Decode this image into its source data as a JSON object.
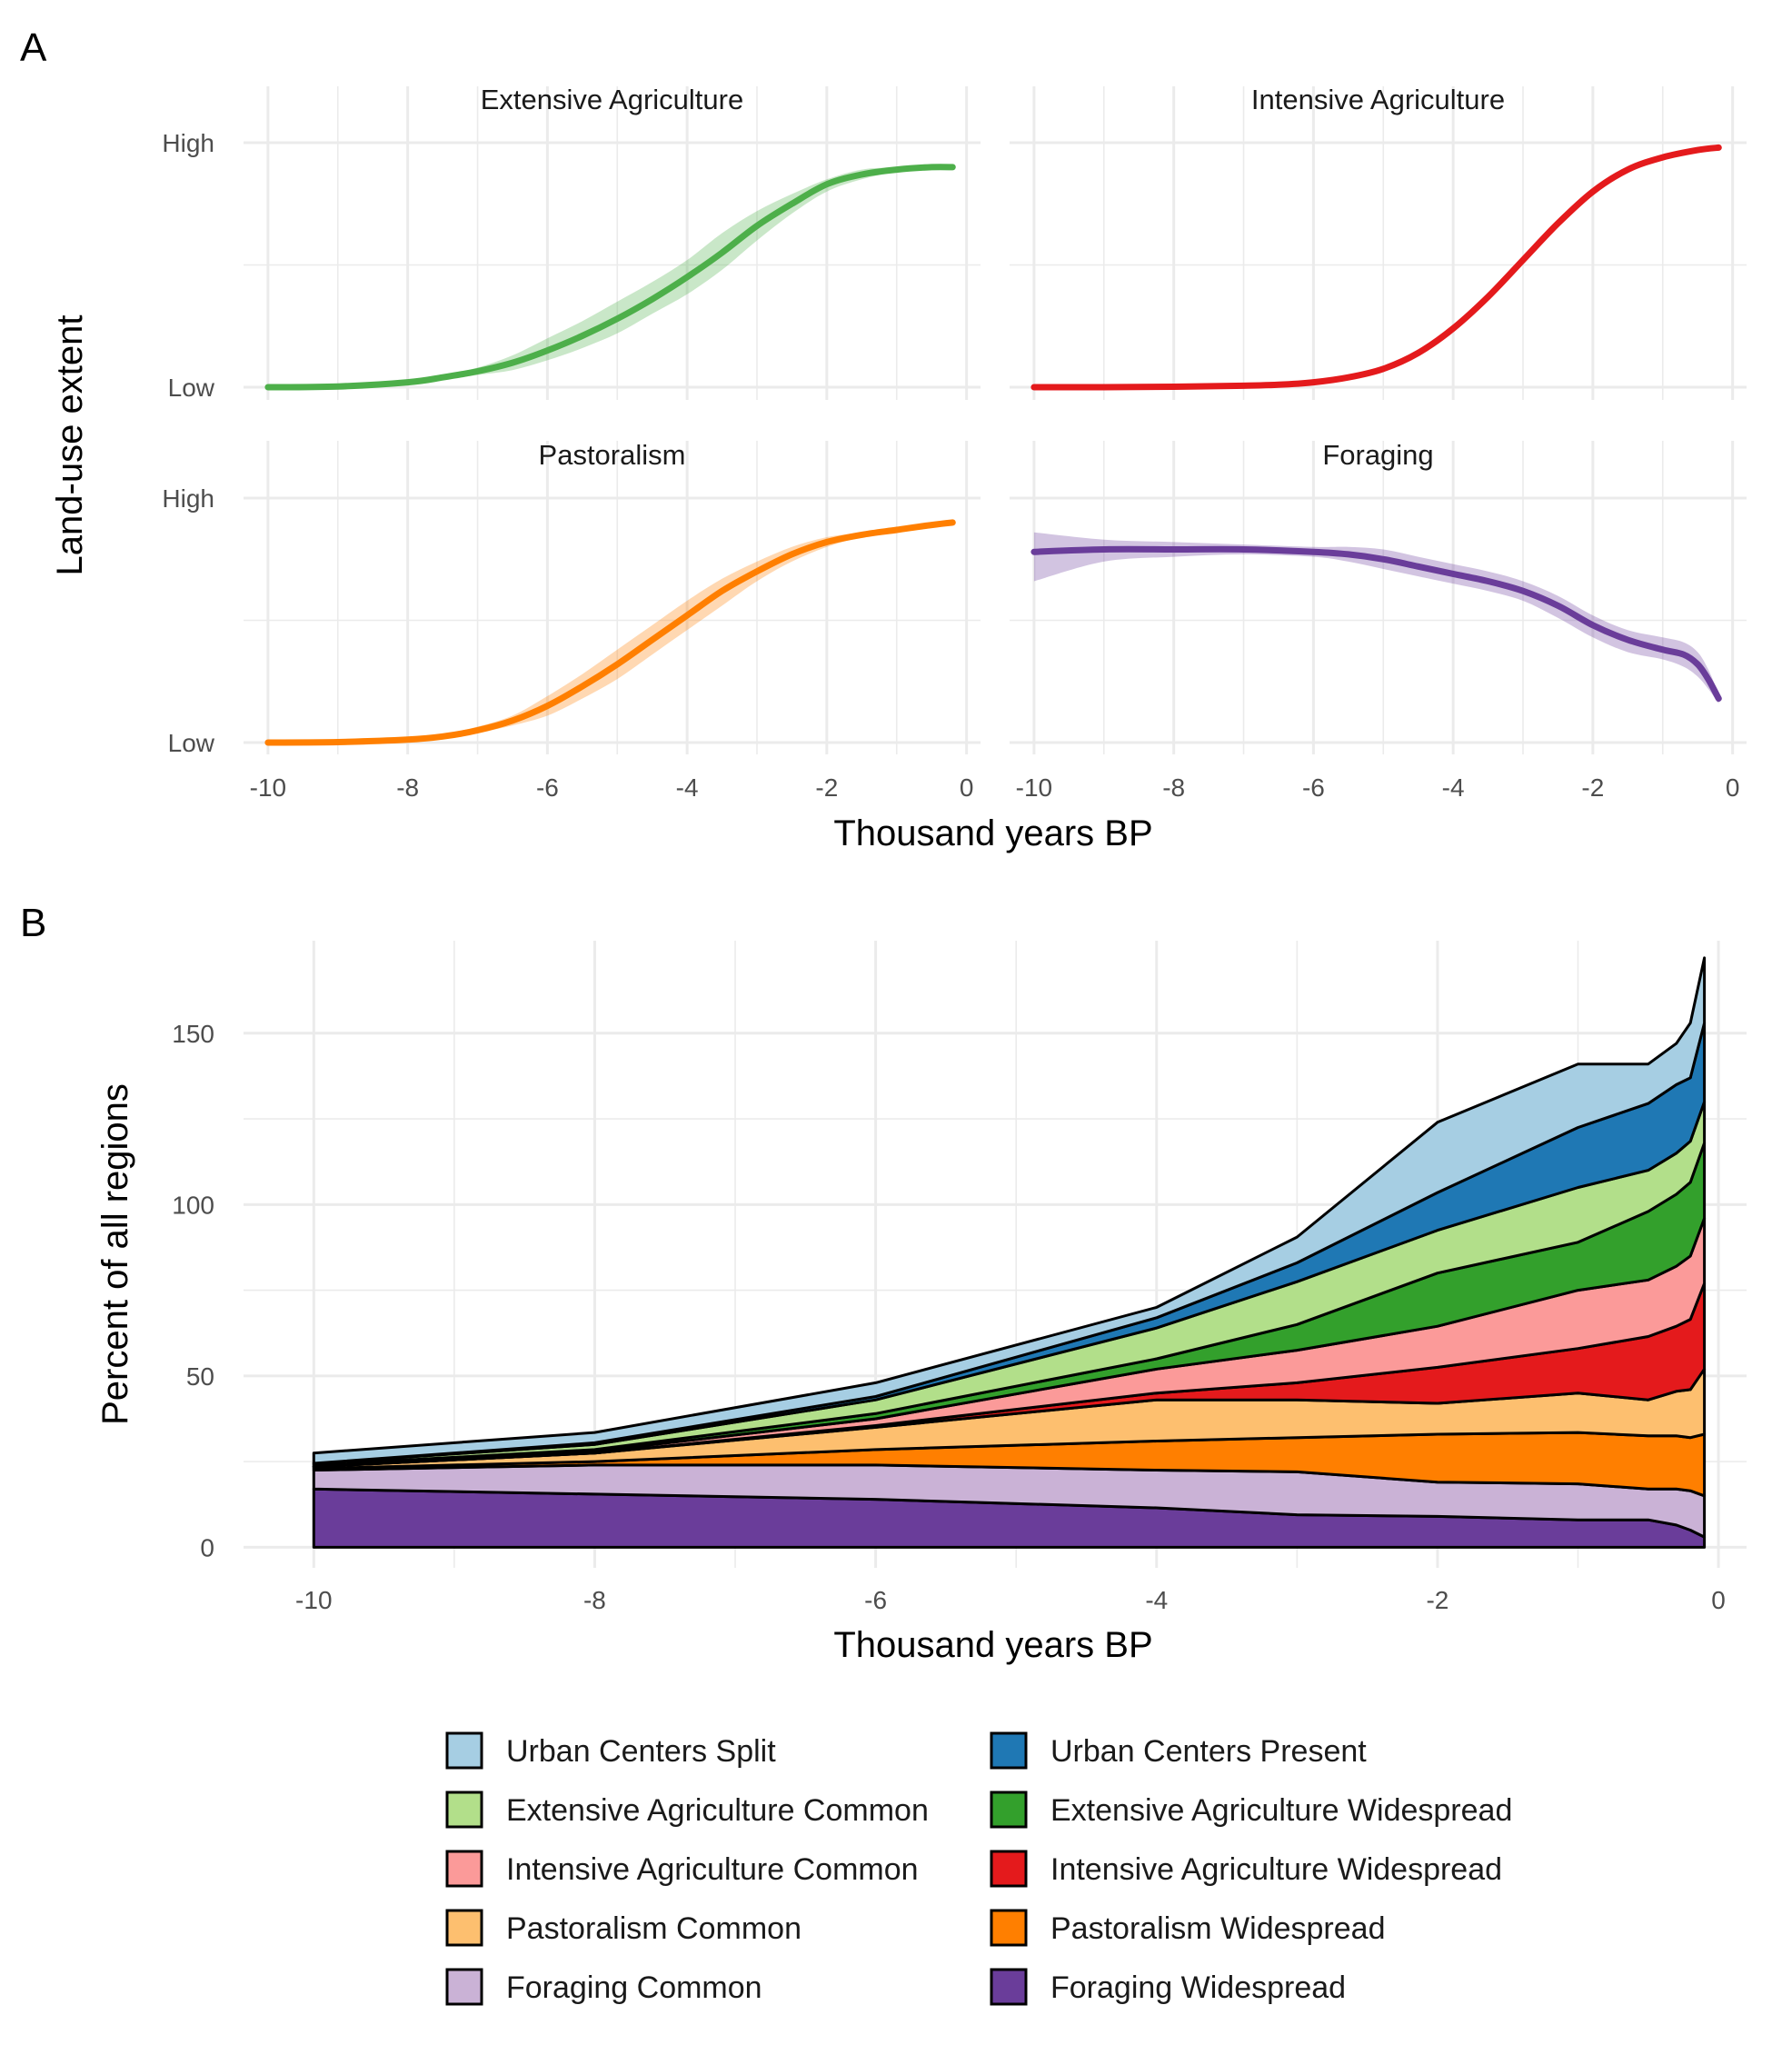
{
  "chart_data": [
    {
      "panel": "A",
      "type": "line",
      "xlabel": "Thousand years BP",
      "ylabel": "Land-use extent",
      "x_ticks": [
        "-10",
        "-8",
        "-6",
        "-4",
        "-2",
        "0"
      ],
      "xlim": [
        -10.35,
        0.2
      ],
      "y_ticks": [
        "Low",
        "High"
      ],
      "ylim": [
        0,
        1
      ],
      "grid": true,
      "facets": [
        {
          "title": "Extensive Agriculture",
          "color": "#4daf4a",
          "x": [
            -10,
            -9,
            -8,
            -7.5,
            -7,
            -6.5,
            -6,
            -5.5,
            -5,
            -4.5,
            -4,
            -3.5,
            -3,
            -2.5,
            -2,
            -1.5,
            -1,
            -0.5,
            -0.2
          ],
          "y": [
            0.0,
            0.003,
            0.02,
            0.04,
            0.065,
            0.1,
            0.15,
            0.21,
            0.28,
            0.36,
            0.45,
            0.55,
            0.66,
            0.75,
            0.83,
            0.87,
            0.89,
            0.9,
            0.9
          ],
          "lower": [
            0.0,
            0.002,
            0.012,
            0.03,
            0.05,
            0.07,
            0.11,
            0.16,
            0.22,
            0.3,
            0.38,
            0.48,
            0.6,
            0.71,
            0.8,
            0.85,
            0.88,
            0.89,
            0.89
          ],
          "upper": [
            0.0,
            0.004,
            0.025,
            0.05,
            0.08,
            0.13,
            0.2,
            0.27,
            0.35,
            0.43,
            0.52,
            0.63,
            0.72,
            0.79,
            0.85,
            0.89,
            0.9,
            0.91,
            0.91
          ]
        },
        {
          "title": "Intensive Agriculture",
          "color": "#e41a1c",
          "x": [
            -10,
            -9,
            -8,
            -7,
            -6.5,
            -6,
            -5.5,
            -5,
            -4.5,
            -4,
            -3.5,
            -3,
            -2.5,
            -2,
            -1.5,
            -1,
            -0.5,
            -0.2
          ],
          "y": [
            0.0,
            0.0,
            0.002,
            0.006,
            0.01,
            0.02,
            0.04,
            0.075,
            0.14,
            0.24,
            0.37,
            0.52,
            0.67,
            0.8,
            0.89,
            0.94,
            0.97,
            0.98
          ],
          "lower": [
            0.0,
            0.0,
            0.002,
            0.005,
            0.009,
            0.019,
            0.039,
            0.073,
            0.137,
            0.236,
            0.365,
            0.515,
            0.665,
            0.795,
            0.885,
            0.935,
            0.965,
            0.975
          ],
          "upper": [
            0.0,
            0.0,
            0.002,
            0.007,
            0.011,
            0.021,
            0.041,
            0.077,
            0.143,
            0.244,
            0.375,
            0.525,
            0.675,
            0.805,
            0.895,
            0.945,
            0.975,
            0.985
          ]
        },
        {
          "title": "Pastoralism",
          "color": "#ff7f00",
          "x": [
            -10,
            -9,
            -8,
            -7.5,
            -7,
            -6.5,
            -6,
            -5.5,
            -5,
            -4.5,
            -4,
            -3.5,
            -3,
            -2.5,
            -2,
            -1.5,
            -1,
            -0.5,
            -0.2
          ],
          "y": [
            0.0,
            0.002,
            0.012,
            0.025,
            0.05,
            0.09,
            0.15,
            0.23,
            0.32,
            0.42,
            0.52,
            0.62,
            0.7,
            0.77,
            0.82,
            0.85,
            0.87,
            0.89,
            0.9
          ],
          "lower": [
            0.0,
            0.001,
            0.008,
            0.018,
            0.04,
            0.07,
            0.11,
            0.18,
            0.26,
            0.36,
            0.46,
            0.56,
            0.66,
            0.74,
            0.8,
            0.84,
            0.86,
            0.88,
            0.89
          ],
          "upper": [
            0.0,
            0.003,
            0.016,
            0.033,
            0.065,
            0.11,
            0.19,
            0.28,
            0.38,
            0.48,
            0.58,
            0.67,
            0.74,
            0.8,
            0.84,
            0.86,
            0.88,
            0.9,
            0.91
          ]
        },
        {
          "title": "Foraging",
          "color": "#6a3d9a",
          "x": [
            -10,
            -9,
            -8,
            -7,
            -6,
            -5.5,
            -5,
            -4.5,
            -4,
            -3.5,
            -3,
            -2.5,
            -2,
            -1.5,
            -1,
            -0.7,
            -0.5,
            -0.35,
            -0.2
          ],
          "y": [
            0.78,
            0.79,
            0.79,
            0.79,
            0.78,
            0.77,
            0.75,
            0.72,
            0.69,
            0.66,
            0.62,
            0.56,
            0.48,
            0.42,
            0.38,
            0.36,
            0.32,
            0.26,
            0.18
          ],
          "lower": [
            0.66,
            0.74,
            0.76,
            0.77,
            0.76,
            0.74,
            0.71,
            0.68,
            0.65,
            0.62,
            0.58,
            0.51,
            0.43,
            0.37,
            0.34,
            0.31,
            0.27,
            0.22,
            0.16
          ],
          "upper": [
            0.86,
            0.83,
            0.82,
            0.81,
            0.8,
            0.8,
            0.79,
            0.76,
            0.73,
            0.7,
            0.66,
            0.6,
            0.52,
            0.46,
            0.43,
            0.41,
            0.37,
            0.3,
            0.2
          ]
        }
      ]
    },
    {
      "panel": "B",
      "type": "area",
      "stacked": true,
      "xlabel": "Thousand years BP",
      "ylabel": "Percent of all regions",
      "x_ticks": [
        "-10",
        "-8",
        "-6",
        "-4",
        "-2",
        "0"
      ],
      "xlim": [
        -10.5,
        0.2
      ],
      "y_ticks": [
        "0",
        "50",
        "100",
        "150"
      ],
      "ylim": [
        -6,
        177
      ],
      "grid": true,
      "legend_position": "bottom",
      "x": [
        -10,
        -8,
        -6,
        -4,
        -3,
        -2,
        -1,
        -0.5,
        -0.3,
        -0.2,
        -0.1
      ],
      "series": [
        {
          "name": "Foraging Widespread",
          "color": "#6a3d9a",
          "values": [
            17,
            15.5,
            14,
            11.5,
            9.5,
            9,
            8,
            8,
            6.5,
            5,
            3
          ]
        },
        {
          "name": "Foraging Common",
          "color": "#cab2d6",
          "values": [
            5.5,
            8.5,
            10,
            11,
            12.5,
            10,
            10.5,
            9,
            10.5,
            11.5,
            12
          ]
        },
        {
          "name": "Pastoralism Widespread",
          "color": "#ff7f00",
          "values": [
            0.5,
            1,
            4.5,
            8.5,
            10,
            14,
            15,
            15.5,
            15.5,
            15.5,
            18
          ]
        },
        {
          "name": "Pastoralism Common",
          "color": "#fdbf6f",
          "values": [
            0.5,
            2.5,
            6.5,
            12,
            11,
            9,
            11.5,
            10.5,
            13,
            14,
            19
          ]
        },
        {
          "name": "Intensive Agriculture Widespread",
          "color": "#e41a1c",
          "values": [
            0,
            0,
            0.5,
            2,
            5,
            10.5,
            13,
            18.5,
            19,
            20.5,
            25
          ]
        },
        {
          "name": "Intensive Agriculture Common",
          "color": "#fb9a99",
          "values": [
            0,
            0.5,
            2,
            7,
            9.5,
            12,
            17,
            16.5,
            17.5,
            18.5,
            19
          ]
        },
        {
          "name": "Extensive Agriculture Widespread",
          "color": "#33a02c",
          "values": [
            0.5,
            0.5,
            1.5,
            3,
            7.5,
            15.5,
            14,
            20,
            21,
            21.5,
            22
          ]
        },
        {
          "name": "Extensive Agriculture Common",
          "color": "#b2df8a",
          "values": [
            0.5,
            1.5,
            4,
            9,
            12.5,
            12.5,
            16,
            12,
            12,
            12,
            12
          ]
        },
        {
          "name": "Urban Centers Present",
          "color": "#1f78b4",
          "values": [
            0,
            0.5,
            1,
            3,
            5.5,
            11,
            17.5,
            19.5,
            20,
            18.5,
            23
          ]
        },
        {
          "name": "Urban Centers Split",
          "color": "#a6cee3",
          "values": [
            3,
            3,
            4,
            3,
            7.5,
            20.5,
            18.5,
            11.5,
            12,
            16,
            19
          ]
        }
      ],
      "legend_order": [
        "Urban Centers Split",
        "Urban Centers Present",
        "Extensive Agriculture Common",
        "Extensive Agriculture Widespread",
        "Intensive Agriculture Common",
        "Intensive Agriculture Widespread",
        "Pastoralism Common",
        "Pastoralism Widespread",
        "Foraging Common",
        "Foraging Widespread"
      ]
    }
  ]
}
